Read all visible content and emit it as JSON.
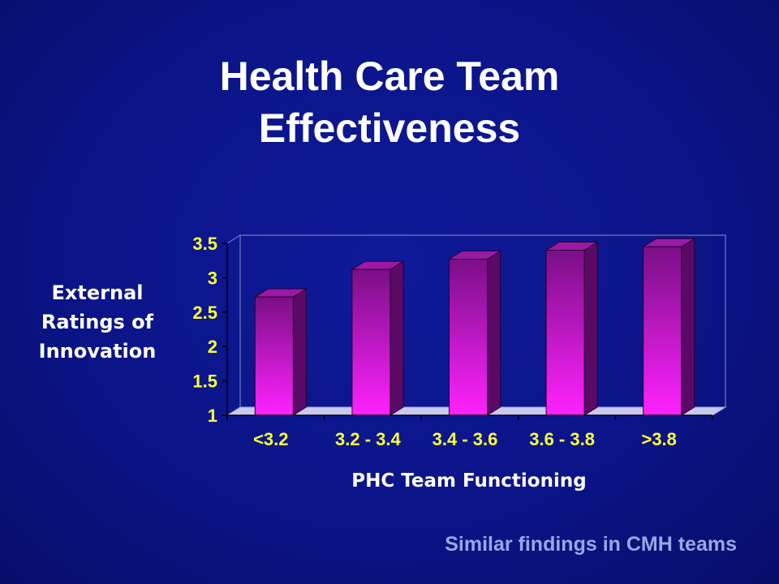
{
  "title_lines": [
    "Health Care Team",
    "Effectiveness"
  ],
  "footer_note": "Similar findings in CMH teams",
  "colors": {
    "background": "#0b1488",
    "title": "#ffffff",
    "tick_labels": "#ffff33",
    "bar_front_top": "#7a0f86",
    "bar_front_bottom": "#ff22ff",
    "bar_side": "#5a0a66",
    "bar_top": "#9a1aa6",
    "floor": "#c8c8f0",
    "footer": "#9aa6e6"
  },
  "chart_data": {
    "type": "bar",
    "title": "",
    "ylabel_lines": [
      "External",
      "Ratings of",
      "Innovation"
    ],
    "xlabel": "PHC Team Functioning",
    "categories": [
      "<3.2",
      "3.2 - 3.4",
      "3.4 - 3.6",
      "3.6 - 3.8",
      ">3.8"
    ],
    "values": [
      2.72,
      3.12,
      3.27,
      3.4,
      3.45
    ],
    "ylim": [
      1,
      3.5
    ],
    "yticks": [
      "1",
      "1.5",
      "2",
      "2.5",
      "3",
      "3.5"
    ],
    "ytick_values": [
      1,
      1.5,
      2,
      2.5,
      3,
      3.5
    ],
    "grid": false,
    "legend": "none",
    "style": "3d-bar"
  }
}
